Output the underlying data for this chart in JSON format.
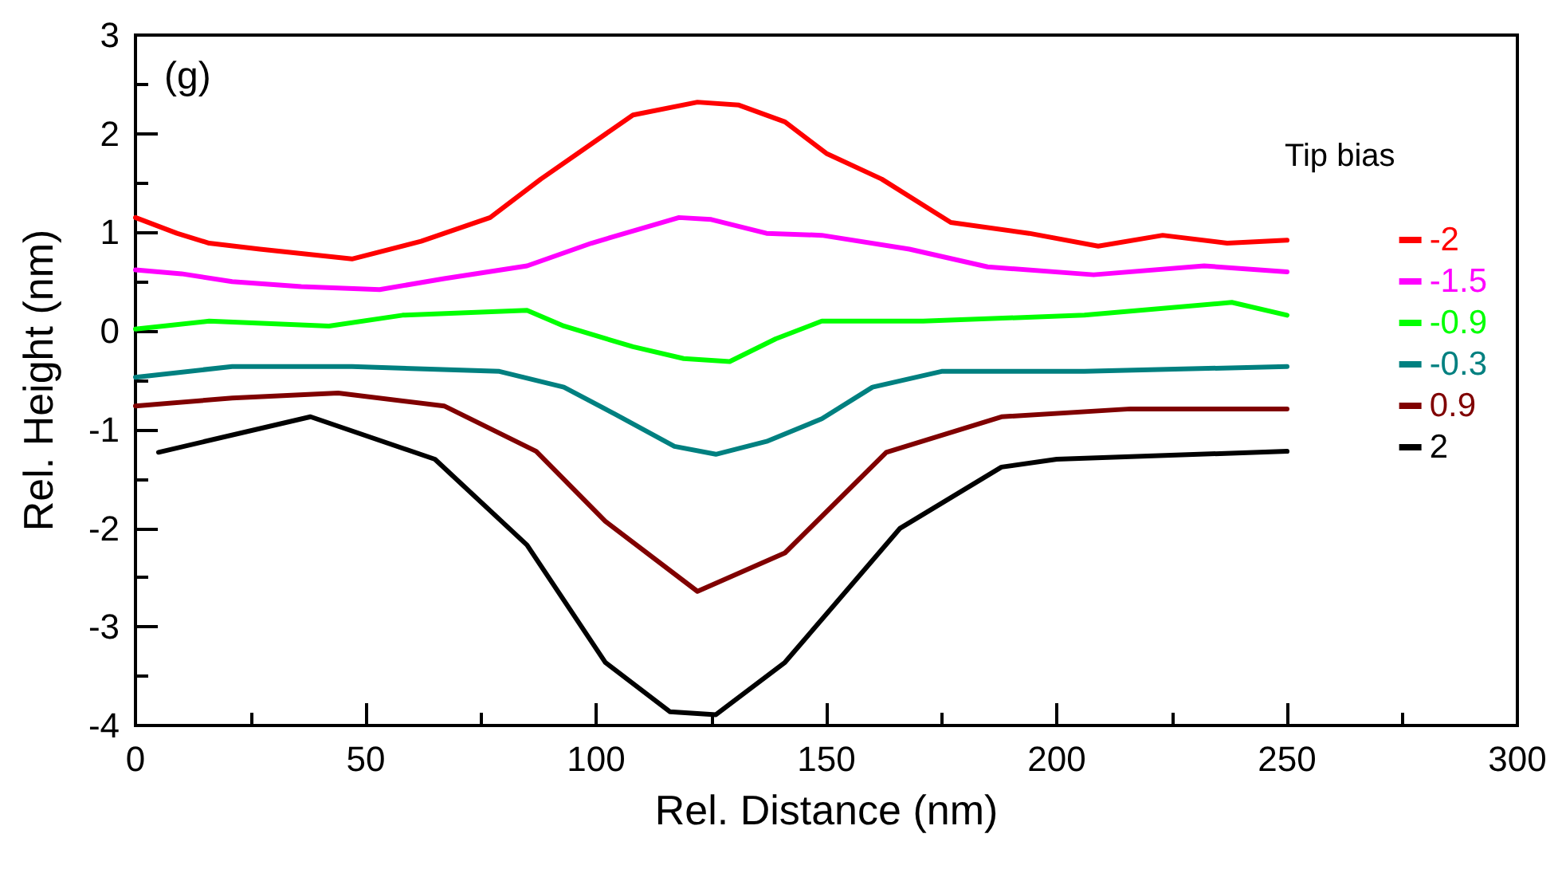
{
  "chart_data": {
    "type": "line",
    "xlabel": "Rel. Distance (nm)",
    "ylabel": "Rel. Height (nm)",
    "legend_title": "Tip bias",
    "annotations": [
      "(g)"
    ],
    "xlim": [
      0,
      300
    ],
    "xticks": [
      0,
      50,
      100,
      150,
      200,
      250,
      300
    ],
    "ylim": [
      -4,
      3
    ],
    "yticks": [
      -4,
      -3,
      -2,
      -1,
      0,
      1,
      2,
      3
    ],
    "grid": false,
    "legend": "right",
    "marker": "none",
    "line_style": "solid",
    "series": [
      {
        "name": "-2",
        "color": "#ff0000",
        "x": [
          0,
          9,
          16,
          27,
          47,
          62,
          77,
          88,
          96,
          108,
          122,
          131,
          141,
          150,
          162,
          177,
          194,
          209,
          223,
          237,
          250
        ],
        "values": [
          1.15,
          0.99,
          0.89,
          0.83,
          0.73,
          0.91,
          1.15,
          1.54,
          1.8,
          2.19,
          2.32,
          2.29,
          2.12,
          1.8,
          1.54,
          1.1,
          0.99,
          0.86,
          0.97,
          0.89,
          0.92
        ]
      },
      {
        "name": "-1.5",
        "color": "#ff00ff",
        "x": [
          0,
          10,
          21,
          36,
          53,
          67,
          85,
          99,
          118,
          125,
          137,
          149,
          168,
          185,
          208,
          232,
          250
        ],
        "values": [
          0.62,
          0.58,
          0.5,
          0.45,
          0.42,
          0.53,
          0.66,
          0.89,
          1.15,
          1.13,
          0.99,
          0.97,
          0.83,
          0.65,
          0.57,
          0.66,
          0.6
        ]
      },
      {
        "name": "-0.9",
        "color": "#00ff00",
        "x": [
          0,
          16,
          42,
          58,
          85,
          93,
          108,
          119,
          129,
          139,
          149,
          171,
          206,
          238,
          250
        ],
        "values": [
          0.02,
          0.1,
          0.05,
          0.16,
          0.21,
          0.05,
          -0.16,
          -0.28,
          -0.31,
          -0.08,
          0.1,
          0.1,
          0.16,
          0.29,
          0.16
        ]
      },
      {
        "name": "-0.3",
        "color": "#008080",
        "x": [
          0,
          21,
          47,
          79,
          93,
          104,
          117,
          126,
          137,
          149,
          160,
          175,
          206,
          250
        ],
        "values": [
          -0.47,
          -0.36,
          -0.36,
          -0.41,
          -0.57,
          -0.84,
          -1.17,
          -1.25,
          -1.12,
          -0.89,
          -0.57,
          -0.41,
          -0.41,
          -0.36
        ]
      },
      {
        "name": "0.9",
        "color": "#800000",
        "x": [
          0,
          21,
          44,
          67,
          87,
          102,
          122,
          141,
          163,
          188,
          216,
          250
        ],
        "values": [
          -0.76,
          -0.68,
          -0.63,
          -0.76,
          -1.22,
          -1.93,
          -2.64,
          -2.25,
          -1.23,
          -0.87,
          -0.79,
          -0.79
        ]
      },
      {
        "name": "2",
        "color": "#000000",
        "x": [
          5,
          38,
          65,
          85,
          102,
          116,
          126,
          141,
          166,
          188,
          200,
          250
        ],
        "values": [
          -1.23,
          -0.87,
          -1.3,
          -2.17,
          -3.36,
          -3.86,
          -3.89,
          -3.36,
          -2.0,
          -1.38,
          -1.3,
          -1.22
        ]
      }
    ]
  }
}
